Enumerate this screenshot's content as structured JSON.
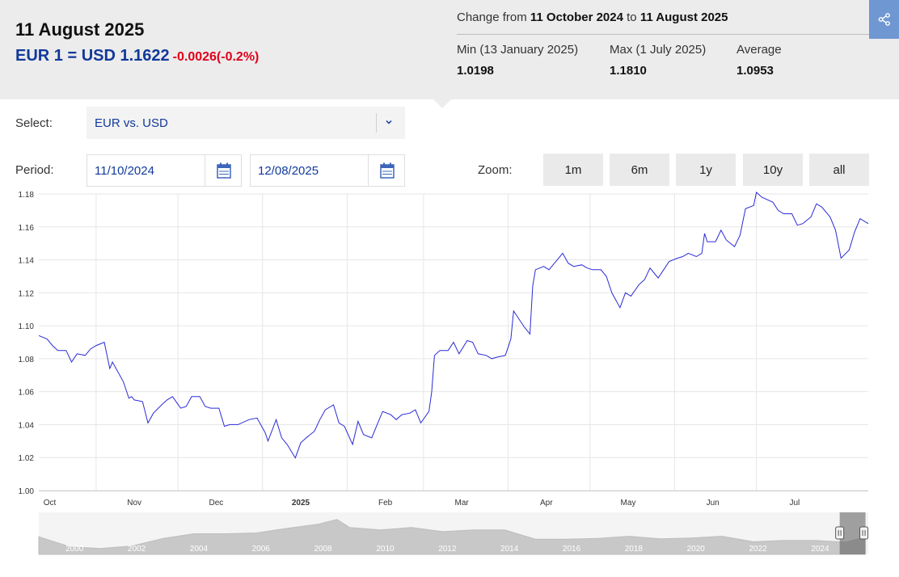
{
  "header": {
    "date_title": "11 August 2025",
    "rate_text": "EUR 1 = USD 1.1622",
    "change_text": "-0.0026(-0.2%)",
    "range": {
      "prefix": "Change from",
      "start": "11 October 2024",
      "mid": "to",
      "end": "11 August 2025"
    },
    "stats": [
      {
        "label": "Min (13 January 2025)",
        "value": "1.0198"
      },
      {
        "label": "Max (1 July 2025)",
        "value": "1.1810"
      },
      {
        "label": "Average",
        "value": "1.0953"
      }
    ],
    "share_icon": "share-icon"
  },
  "controls": {
    "select_label": "Select:",
    "select_value": "EUR vs. USD",
    "period_label": "Period:",
    "period_start": "11/10/2024",
    "period_end": "12/08/2025",
    "zoom_label": "Zoom:",
    "zoom_options": [
      "1m",
      "6m",
      "1y",
      "10y",
      "all"
    ]
  },
  "colors": {
    "accent": "#12399a",
    "negative": "#e0001b",
    "line": "#2b2bd6",
    "share_button": "#6f97d2"
  },
  "chart_data": {
    "type": "line",
    "title": "",
    "xlabel": "",
    "ylabel": "",
    "ylim": [
      1.0,
      1.18
    ],
    "y_ticks": [
      "1.00",
      "1.02",
      "1.04",
      "1.06",
      "1.08",
      "1.10",
      "1.12",
      "1.14",
      "1.16",
      "1.18"
    ],
    "x_range": [
      "2024-10-11",
      "2025-08-11"
    ],
    "x_ticks": [
      {
        "label": "Oct",
        "date": "2024-10-15"
      },
      {
        "label": "Nov",
        "date": "2024-11-15"
      },
      {
        "label": "Dec",
        "date": "2024-12-15"
      },
      {
        "label": "2025",
        "date": "2025-01-15",
        "bold": true
      },
      {
        "label": "Feb",
        "date": "2025-02-15"
      },
      {
        "label": "Mar",
        "date": "2025-03-15"
      },
      {
        "label": "Apr",
        "date": "2025-04-15"
      },
      {
        "label": "May",
        "date": "2025-05-15"
      },
      {
        "label": "Jun",
        "date": "2025-06-15"
      },
      {
        "label": "Jul",
        "date": "2025-07-15"
      }
    ],
    "grid": true,
    "series": [
      {
        "x": [
          "2024-10-11",
          "2024-10-14",
          "2024-10-16",
          "2024-10-18",
          "2024-10-21",
          "2024-10-23",
          "2024-10-25",
          "2024-10-28",
          "2024-10-30",
          "2024-11-01",
          "2024-11-04",
          "2024-11-06",
          "2024-11-07",
          "2024-11-08",
          "2024-11-11",
          "2024-11-13",
          "2024-11-14",
          "2024-11-15",
          "2024-11-18",
          "2024-11-20",
          "2024-11-22",
          "2024-11-25",
          "2024-11-27",
          "2024-11-29",
          "2024-12-02",
          "2024-12-04",
          "2024-12-06",
          "2024-12-09",
          "2024-12-11",
          "2024-12-13",
          "2024-12-16",
          "2024-12-18",
          "2024-12-20",
          "2024-12-23",
          "2024-12-27",
          "2024-12-30",
          "2025-01-02",
          "2025-01-03",
          "2025-01-06",
          "2025-01-08",
          "2025-01-10",
          "2025-01-13",
          "2025-01-15",
          "2025-01-17",
          "2025-01-20",
          "2025-01-22",
          "2025-01-24",
          "2025-01-27",
          "2025-01-29",
          "2025-01-31",
          "2025-02-03",
          "2025-02-05",
          "2025-02-07",
          "2025-02-10",
          "2025-02-12",
          "2025-02-14",
          "2025-02-17",
          "2025-02-19",
          "2025-02-21",
          "2025-02-24",
          "2025-02-26",
          "2025-02-28",
          "2025-03-03",
          "2025-03-04",
          "2025-03-05",
          "2025-03-07",
          "2025-03-10",
          "2025-03-12",
          "2025-03-14",
          "2025-03-17",
          "2025-03-19",
          "2025-03-21",
          "2025-03-24",
          "2025-03-26",
          "2025-03-28",
          "2025-03-31",
          "2025-04-02",
          "2025-04-03",
          "2025-04-07",
          "2025-04-09",
          "2025-04-10",
          "2025-04-11",
          "2025-04-14",
          "2025-04-16",
          "2025-04-18",
          "2025-04-21",
          "2025-04-23",
          "2025-04-25",
          "2025-04-28",
          "2025-04-30",
          "2025-05-02",
          "2025-05-05",
          "2025-05-07",
          "2025-05-09",
          "2025-05-12",
          "2025-05-14",
          "2025-05-16",
          "2025-05-19",
          "2025-05-21",
          "2025-05-23",
          "2025-05-26",
          "2025-05-28",
          "2025-05-30",
          "2025-06-02",
          "2025-06-04",
          "2025-06-06",
          "2025-06-09",
          "2025-06-11",
          "2025-06-12",
          "2025-06-13",
          "2025-06-16",
          "2025-06-18",
          "2025-06-20",
          "2025-06-23",
          "2025-06-25",
          "2025-06-27",
          "2025-06-30",
          "2025-07-01",
          "2025-07-03",
          "2025-07-07",
          "2025-07-09",
          "2025-07-11",
          "2025-07-14",
          "2025-07-16",
          "2025-07-18",
          "2025-07-21",
          "2025-07-23",
          "2025-07-25",
          "2025-07-28",
          "2025-07-30",
          "2025-08-01",
          "2025-08-04",
          "2025-08-06",
          "2025-08-08",
          "2025-08-11"
        ],
        "y": [
          1.094,
          1.092,
          1.088,
          1.085,
          1.085,
          1.078,
          1.083,
          1.082,
          1.086,
          1.088,
          1.09,
          1.074,
          1.078,
          1.075,
          1.066,
          1.056,
          1.057,
          1.055,
          1.054,
          1.041,
          1.047,
          1.052,
          1.055,
          1.057,
          1.05,
          1.051,
          1.057,
          1.057,
          1.051,
          1.05,
          1.05,
          1.039,
          1.04,
          1.04,
          1.043,
          1.044,
          1.035,
          1.03,
          1.043,
          1.032,
          1.028,
          1.0198,
          1.029,
          1.032,
          1.036,
          1.043,
          1.049,
          1.052,
          1.041,
          1.039,
          1.028,
          1.042,
          1.034,
          1.032,
          1.04,
          1.048,
          1.046,
          1.043,
          1.046,
          1.047,
          1.049,
          1.041,
          1.048,
          1.06,
          1.082,
          1.085,
          1.085,
          1.09,
          1.083,
          1.091,
          1.09,
          1.083,
          1.082,
          1.08,
          1.081,
          1.082,
          1.092,
          1.109,
          1.099,
          1.095,
          1.124,
          1.134,
          1.136,
          1.134,
          1.138,
          1.144,
          1.138,
          1.136,
          1.137,
          1.135,
          1.134,
          1.134,
          1.13,
          1.12,
          1.111,
          1.12,
          1.118,
          1.125,
          1.128,
          1.135,
          1.129,
          1.134,
          1.139,
          1.141,
          1.142,
          1.144,
          1.142,
          1.144,
          1.156,
          1.151,
          1.151,
          1.158,
          1.152,
          1.148,
          1.155,
          1.171,
          1.173,
          1.181,
          1.178,
          1.175,
          1.17,
          1.168,
          1.168,
          1.161,
          1.162,
          1.166,
          1.174,
          1.172,
          1.166,
          1.158,
          1.141,
          1.146,
          1.157,
          1.165,
          1.162
        ]
      }
    ],
    "navigator": {
      "x_ticks": [
        "2000",
        "2002",
        "2004",
        "2006",
        "2008",
        "2010",
        "2012",
        "2014",
        "2016",
        "2018",
        "2020",
        "2022",
        "2024"
      ],
      "x_range": [
        1999,
        2025.7
      ],
      "series": {
        "x": [
          1999,
          2000,
          2001,
          2002,
          2003,
          2004,
          2005,
          2006,
          2007,
          2008,
          2008.6,
          2009,
          2010,
          2011,
          2012,
          2013,
          2014,
          2015,
          2016,
          2017,
          2018,
          2019,
          2020,
          2021,
          2022,
          2023,
          2024,
          2025,
          2025.6
        ],
        "y": [
          1.17,
          0.93,
          0.89,
          0.95,
          1.13,
          1.24,
          1.24,
          1.26,
          1.37,
          1.47,
          1.58,
          1.39,
          1.33,
          1.39,
          1.29,
          1.33,
          1.33,
          1.11,
          1.11,
          1.13,
          1.18,
          1.12,
          1.14,
          1.18,
          1.05,
          1.08,
          1.08,
          1.04,
          1.16
        ]
      },
      "ylim": [
        0.75,
        1.75
      ],
      "selected_range": [
        2024.78,
        2025.61
      ]
    }
  }
}
